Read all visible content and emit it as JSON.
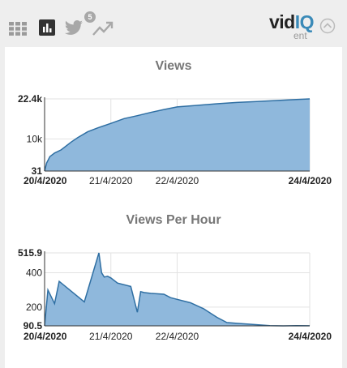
{
  "header": {
    "logo_main": "vid",
    "logo_accent": "IQ",
    "logo_sub": "ent",
    "twitter_badge": "5"
  },
  "colors": {
    "area_fill": "#8fb8dc",
    "area_line": "#2f6fa3",
    "logo_accent": "#3a8ab8"
  },
  "icons": [
    "grid-icon",
    "bar-chart-icon",
    "twitter-icon",
    "trending-icon",
    "chevron-up-icon"
  ],
  "chart_data": [
    {
      "type": "area",
      "title": "Views",
      "x_ticks": [
        "20/4/2020",
        "21/4/2020",
        "22/4/2020",
        "24/4/2020"
      ],
      "y_ticks": [
        "22.4k",
        "10k",
        "31"
      ],
      "x": [
        0,
        0.03,
        0.08,
        0.15,
        0.25,
        0.4,
        0.5,
        0.65,
        0.8,
        1.0,
        1.2,
        1.4,
        1.6,
        1.8,
        2.0,
        2.3,
        2.6,
        2.9,
        3.2,
        3.5,
        3.8,
        4.0
      ],
      "values": [
        31,
        2500,
        4500,
        5600,
        6600,
        9000,
        10400,
        12200,
        13400,
        14800,
        16300,
        17200,
        18200,
        19100,
        19900,
        20400,
        20900,
        21300,
        21600,
        21900,
        22200,
        22400
      ],
      "ylim": [
        31,
        22400
      ],
      "xlim": [
        0,
        4.0
      ]
    },
    {
      "type": "area",
      "title": "Views Per Hour",
      "x_ticks": [
        "20/4/2020",
        "21/4/2020",
        "22/4/2020",
        "24/4/2020"
      ],
      "y_ticks": [
        "515.9",
        "400",
        "200",
        "90.5"
      ],
      "x": [
        0,
        0.05,
        0.15,
        0.22,
        0.6,
        0.82,
        0.86,
        0.9,
        0.95,
        1.0,
        1.1,
        1.3,
        1.4,
        1.45,
        1.5,
        1.6,
        1.8,
        1.9,
        2.0,
        2.2,
        2.4,
        2.6,
        2.75,
        2.9,
        3.1,
        3.4,
        3.6,
        3.8,
        4.0
      ],
      "values": [
        90.5,
        300,
        220,
        350,
        230,
        515.9,
        400,
        375,
        380,
        370,
        340,
        320,
        170,
        290,
        285,
        280,
        275,
        255,
        245,
        225,
        190,
        140,
        110,
        105,
        100,
        92,
        90.5,
        92,
        91
      ],
      "ylim": [
        90.5,
        515.9
      ],
      "xlim": [
        0,
        4.0
      ]
    }
  ]
}
